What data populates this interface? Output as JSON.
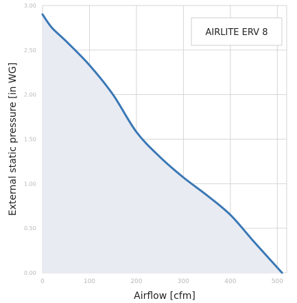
{
  "chart_data": {
    "type": "area",
    "title": "",
    "xlabel": "Airflow [cfm]",
    "ylabel": "External static pressure [in WG]",
    "xlim": [
      0,
      520
    ],
    "ylim": [
      0,
      3.0
    ],
    "x_ticks": [
      0,
      100,
      200,
      300,
      400,
      500
    ],
    "x_tick_labels": [
      "0",
      "100",
      "200",
      "300",
      "400",
      "500"
    ],
    "y_ticks": [
      0,
      0.5,
      1.0,
      1.5,
      2.0,
      2.5,
      3.0
    ],
    "y_tick_labels": [
      "0.00",
      "0.50",
      "1.00",
      "1.50",
      "2.00",
      "2.50",
      "3.00"
    ],
    "grid": true,
    "legend_position": "top-right",
    "series": [
      {
        "name": "AIRLITE ERV 8",
        "x": [
          0,
          20,
          50,
          100,
          150,
          200,
          250,
          300,
          350,
          400,
          450,
          510
        ],
        "y": [
          2.9,
          2.75,
          2.6,
          2.33,
          2.0,
          1.58,
          1.3,
          1.07,
          0.87,
          0.65,
          0.35,
          0.0
        ]
      }
    ],
    "colors": {
      "line": "#3a78b5",
      "fill": "#e9ebf2",
      "grid": "#d6d6d6",
      "tick_text": "#b8b8b8",
      "axis_label": "#222222"
    }
  }
}
